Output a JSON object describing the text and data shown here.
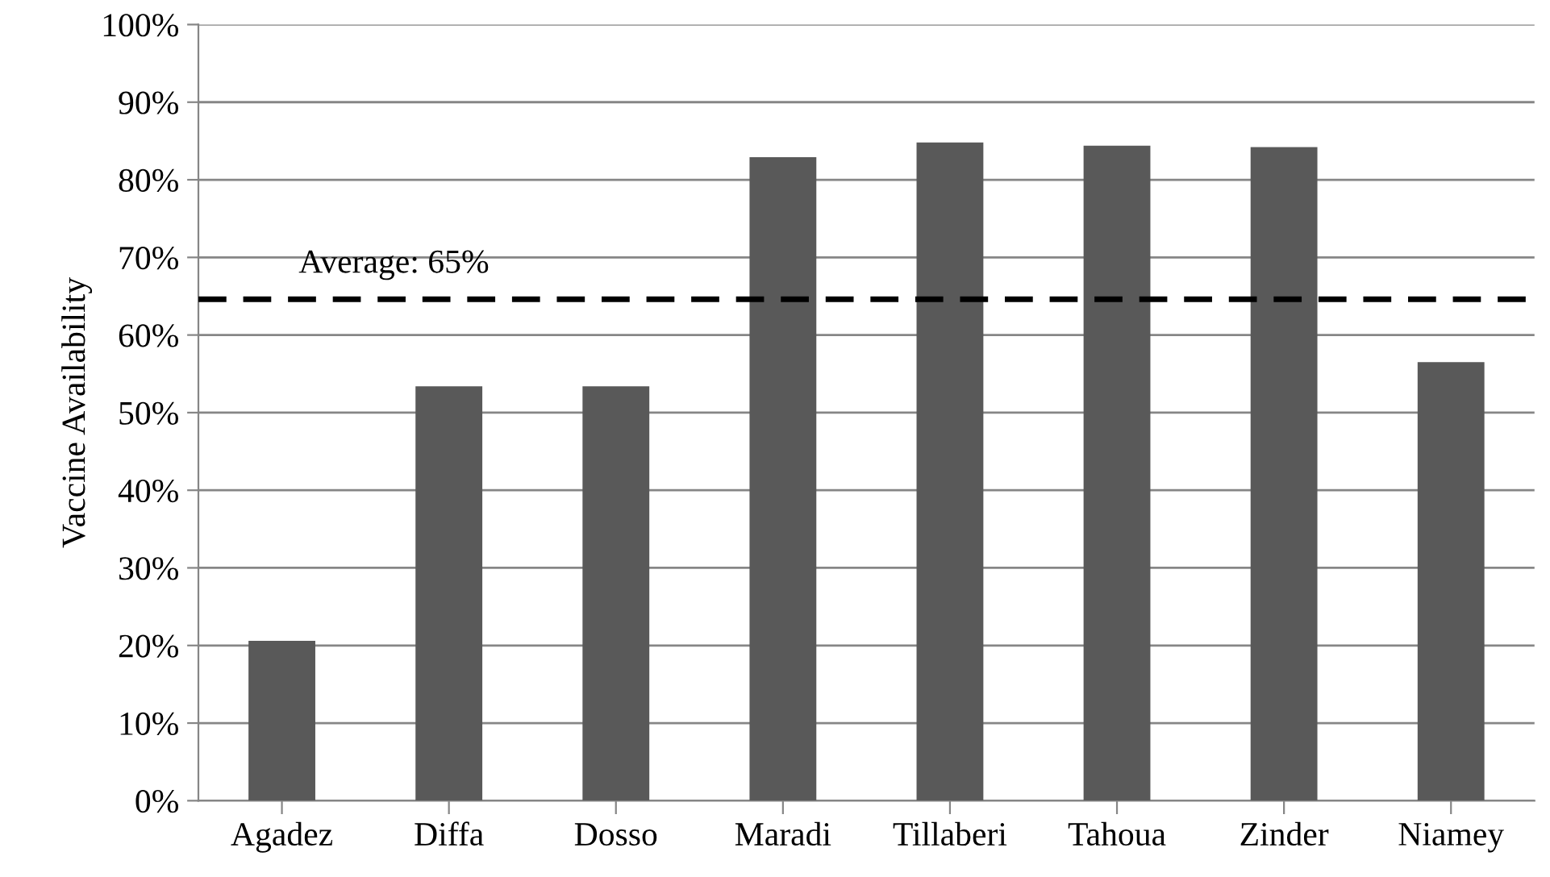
{
  "chart_data": {
    "type": "bar",
    "ylabel": "Vaccine Availability",
    "categories": [
      "Agadez",
      "Diffa",
      "Dosso",
      "Maradi",
      "Tillaberi",
      "Tahoua",
      "Zinder",
      "Niamey"
    ],
    "values": [
      20.6,
      53.4,
      53.4,
      82.9,
      84.8,
      84.4,
      84.2,
      56.5
    ],
    "color": "#595959",
    "ylim": [
      0,
      100
    ],
    "yticks": [
      {
        "value": 0,
        "label": "0%"
      },
      {
        "value": 10,
        "label": "10%"
      },
      {
        "value": 20,
        "label": "20%"
      },
      {
        "value": 30,
        "label": "30%"
      },
      {
        "value": 40,
        "label": "40%"
      },
      {
        "value": 50,
        "label": "50%"
      },
      {
        "value": 60,
        "label": "60%"
      },
      {
        "value": 70,
        "label": "70%"
      },
      {
        "value": 80,
        "label": "80%"
      },
      {
        "value": 90,
        "label": "90%"
      },
      {
        "value": 100,
        "label": "100%"
      }
    ],
    "grid": "y",
    "legend": false,
    "ref_lines": [
      {
        "axis": "y",
        "value": 64.6,
        "label": "Average: 65%",
        "color": "#000000",
        "line_style": "dashed"
      }
    ]
  }
}
